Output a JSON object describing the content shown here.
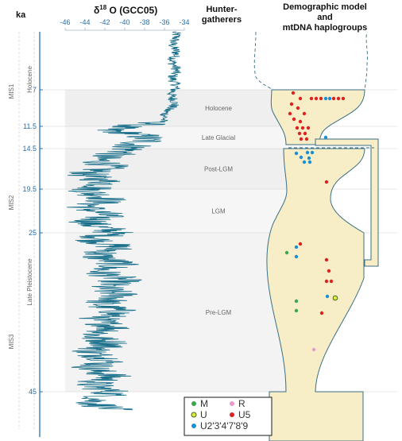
{
  "headers": {
    "ka": "ka",
    "delta_prefix": "δ",
    "delta_sup": "18",
    "delta_suffix": " O (GCC05)",
    "hunter_line1": "Hunter-",
    "hunter_line2": "gatherers",
    "demo_line1": "Demographic model",
    "demo_line2": "and",
    "demo_line3": "mtDNA haplogroups"
  },
  "side_labels": {
    "mis1": "MIS1",
    "mis2": "MIS2",
    "mis3": "MIS3",
    "holocene": "Holocene",
    "late_pleistocene": "Late Pleistocene"
  },
  "periods": [
    {
      "label": "Holocene",
      "from": 7,
      "to": 11.5
    },
    {
      "label": "Late Glacial",
      "from": 11.5,
      "to": 14.5
    },
    {
      "label": "Post-LGM",
      "from": 14.5,
      "to": 19.5
    },
    {
      "label": "LGM",
      "from": 19.5,
      "to": 25
    },
    {
      "label": "Pre-LGM",
      "from": 25,
      "to": 45
    }
  ],
  "chart_data": {
    "type": "line",
    "series": [
      {
        "name": "δ18O (GCC05)"
      }
    ],
    "x_ticks": [
      "-46",
      "-44",
      "-42",
      "-40",
      "-38",
      "-36",
      "-34"
    ],
    "xlim": [
      -46,
      -34
    ],
    "y_ticks": [
      "7",
      "11.5",
      "14.5",
      "19.5",
      "25",
      "45"
    ],
    "y_unit": "ka",
    "trend": [
      {
        "age": 0,
        "d18o": -35.0
      },
      {
        "age": 6,
        "d18o": -35.0
      },
      {
        "age": 9,
        "d18o": -35.2
      },
      {
        "age": 11,
        "d18o": -36.5
      },
      {
        "age": 12,
        "d18o": -41.5
      },
      {
        "age": 13.5,
        "d18o": -37.0
      },
      {
        "age": 14.6,
        "d18o": -40.5
      },
      {
        "age": 17,
        "d18o": -43.0
      },
      {
        "age": 20,
        "d18o": -42.6
      },
      {
        "age": 23,
        "d18o": -43.0
      },
      {
        "age": 25,
        "d18o": -42.0
      },
      {
        "age": 28,
        "d18o": -41.8
      },
      {
        "age": 32,
        "d18o": -41.2
      },
      {
        "age": 36,
        "d18o": -41.8
      },
      {
        "age": 40,
        "d18o": -42.5
      },
      {
        "age": 45,
        "d18o": -42.3
      },
      {
        "age": 48,
        "d18o": -42.0
      }
    ]
  },
  "legend": [
    {
      "label": "M",
      "color": "#3aa84a"
    },
    {
      "label": "R",
      "color": "#e89ac8"
    },
    {
      "label": "U",
      "color": "#e6ea3c"
    },
    {
      "label": "U5",
      "color": "#dd2222"
    },
    {
      "label": "U2'3'4'7'8'9",
      "color": "#1a8fd6"
    }
  ],
  "colors": {
    "curve": "#1a6f8a",
    "axis": "#2a6fa8",
    "band": "#efefef",
    "model_fill": "#f7eec8",
    "model_stroke": "#3a6f84"
  }
}
